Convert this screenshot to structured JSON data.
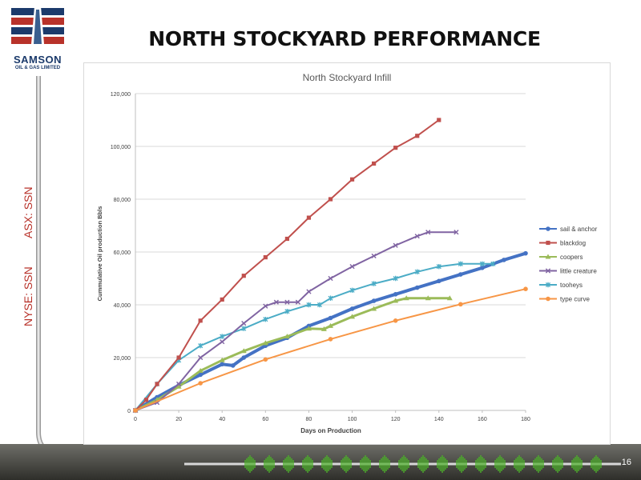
{
  "logo": {
    "name": "SAMSON",
    "subtitle": "OIL & GAS LIMITED"
  },
  "slide_title": "NORTH STOCKYARD PERFORMANCE",
  "tickers": {
    "asx": "ASX: SSN",
    "nyse": "NYSE: SSN"
  },
  "slide_number": "16",
  "colors": {
    "brand_blue": "#1b3a6b",
    "brand_red": "#b8322a",
    "pipe": "#c8c8c8"
  },
  "chart_data": {
    "type": "line",
    "title": "North Stockyard Infill",
    "xlabel": "Days on Production",
    "ylabel": "Cummulative Oil production Bbls",
    "xlim": [
      0,
      180
    ],
    "ylim": [
      0,
      120000
    ],
    "x_ticks": [
      0,
      20,
      40,
      60,
      80,
      100,
      120,
      140,
      160,
      180
    ],
    "x_tick_labels": [
      "0",
      "20",
      "40",
      "60",
      "80",
      "100",
      "120",
      "140",
      "160",
      "180"
    ],
    "y_ticks": [
      0,
      20000,
      40000,
      60000,
      80000,
      100000,
      120000
    ],
    "y_tick_labels": [
      "0",
      "20,000",
      "40,000",
      "60,000",
      "80,000",
      "100,000",
      "120,000"
    ],
    "grid": true,
    "legend_position": "right",
    "series": [
      {
        "name": "sail & anchor",
        "color": "#4472c4",
        "marker": "circle",
        "width": 4,
        "points": [
          [
            0,
            0
          ],
          [
            10,
            5000
          ],
          [
            20,
            9500
          ],
          [
            30,
            13500
          ],
          [
            40,
            17500
          ],
          [
            45,
            17000
          ],
          [
            50,
            20000
          ],
          [
            60,
            24500
          ],
          [
            70,
            27500
          ],
          [
            80,
            32000
          ],
          [
            90,
            35000
          ],
          [
            100,
            38500
          ],
          [
            110,
            41500
          ],
          [
            120,
            44000
          ],
          [
            130,
            46500
          ],
          [
            140,
            49000
          ],
          [
            150,
            51500
          ],
          [
            160,
            54000
          ],
          [
            170,
            57000
          ],
          [
            180,
            59500
          ]
        ]
      },
      {
        "name": "blackdog",
        "color": "#c0504d",
        "marker": "square",
        "width": 2,
        "points": [
          [
            0,
            0
          ],
          [
            5,
            4000
          ],
          [
            10,
            10000
          ],
          [
            20,
            20000
          ],
          [
            30,
            34000
          ],
          [
            40,
            42000
          ],
          [
            50,
            51000
          ],
          [
            60,
            58000
          ],
          [
            70,
            65000
          ],
          [
            80,
            73000
          ],
          [
            90,
            80000
          ],
          [
            100,
            87500
          ],
          [
            110,
            93500
          ],
          [
            120,
            99500
          ],
          [
            130,
            104000
          ],
          [
            140,
            110000
          ]
        ]
      },
      {
        "name": "coopers",
        "color": "#9bbb59",
        "marker": "triangle",
        "width": 3,
        "points": [
          [
            0,
            0
          ],
          [
            10,
            4000
          ],
          [
            20,
            9000
          ],
          [
            30,
            15000
          ],
          [
            40,
            19000
          ],
          [
            50,
            22500
          ],
          [
            60,
            25500
          ],
          [
            70,
            28000
          ],
          [
            80,
            31000
          ],
          [
            87,
            30800
          ],
          [
            90,
            32000
          ],
          [
            100,
            35500
          ],
          [
            110,
            38500
          ],
          [
            120,
            41500
          ],
          [
            125,
            42500
          ],
          [
            135,
            42500
          ],
          [
            145,
            42500
          ]
        ]
      },
      {
        "name": "little creature",
        "color": "#8064a2",
        "marker": "x",
        "width": 2,
        "points": [
          [
            0,
            0
          ],
          [
            10,
            3000
          ],
          [
            20,
            10000
          ],
          [
            30,
            20000
          ],
          [
            40,
            26000
          ],
          [
            50,
            33000
          ],
          [
            60,
            39500
          ],
          [
            65,
            41000
          ],
          [
            70,
            41000
          ],
          [
            75,
            41000
          ],
          [
            80,
            45000
          ],
          [
            90,
            50000
          ],
          [
            100,
            54500
          ],
          [
            110,
            58500
          ],
          [
            120,
            62500
          ],
          [
            130,
            66000
          ],
          [
            135,
            67500
          ],
          [
            148,
            67500
          ]
        ]
      },
      {
        "name": "tooheys",
        "color": "#4bacc6",
        "marker": "star",
        "width": 2,
        "points": [
          [
            0,
            0
          ],
          [
            10,
            10000
          ],
          [
            20,
            19000
          ],
          [
            30,
            24500
          ],
          [
            40,
            28000
          ],
          [
            50,
            31000
          ],
          [
            60,
            34500
          ],
          [
            70,
            37500
          ],
          [
            80,
            40000
          ],
          [
            85,
            40000
          ],
          [
            90,
            42500
          ],
          [
            100,
            45500
          ],
          [
            110,
            48000
          ],
          [
            120,
            50000
          ],
          [
            130,
            52500
          ],
          [
            140,
            54500
          ],
          [
            150,
            55500
          ],
          [
            160,
            55500
          ],
          [
            165,
            55500
          ]
        ]
      },
      {
        "name": "type curve",
        "color": "#f79646",
        "marker": "circle",
        "width": 2,
        "points": [
          [
            0,
            0
          ],
          [
            30,
            10300
          ],
          [
            60,
            19300
          ],
          [
            90,
            27000
          ],
          [
            120,
            34000
          ],
          [
            150,
            40200
          ],
          [
            180,
            46000
          ]
        ]
      }
    ]
  }
}
